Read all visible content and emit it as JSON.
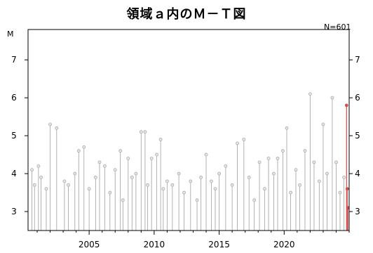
{
  "chart_data": {
    "type": "stem",
    "title": "領域ａ内のＭ－Ｔ図",
    "count_label": "N=601",
    "ylabel": "M",
    "xlim": [
      2000.3,
      2025.0
    ],
    "ylim": [
      2.5,
      7.8
    ],
    "xticks": [
      2005,
      2010,
      2015,
      2020
    ],
    "yticks": [
      3,
      4,
      5,
      6,
      7
    ],
    "baseline": 2.5,
    "series": [
      {
        "color": "#a9a9a9",
        "x": [
          2000.6,
          2000.8,
          2001.1,
          2001.3,
          2001.7,
          2002.0,
          2002.5,
          2003.1,
          2003.4,
          2003.9,
          2004.2,
          2004.6,
          2005.0,
          2005.5,
          2005.8,
          2006.2,
          2006.6,
          2007.0,
          2007.4,
          2007.6,
          2008.0,
          2008.3,
          2008.6,
          2009.0,
          2009.3,
          2009.5,
          2009.8,
          2010.2,
          2010.5,
          2010.7,
          2011.0,
          2011.4,
          2011.9,
          2012.3,
          2012.8,
          2013.3,
          2013.6,
          2014.0,
          2014.4,
          2014.7,
          2015.0,
          2015.5,
          2016.0,
          2016.4,
          2016.9,
          2017.3,
          2017.7,
          2018.1,
          2018.5,
          2018.8,
          2019.2,
          2019.5,
          2019.9,
          2020.2,
          2020.5,
          2020.9,
          2021.2,
          2021.6,
          2022.0,
          2022.3,
          2022.7,
          2023.0,
          2023.3,
          2023.7,
          2024.0,
          2024.3,
          2024.6
        ],
        "y": [
          4.1,
          3.7,
          4.2,
          3.9,
          3.6,
          5.3,
          5.2,
          3.8,
          3.7,
          4.0,
          4.6,
          4.7,
          3.6,
          3.9,
          4.3,
          4.2,
          3.5,
          4.1,
          4.6,
          3.3,
          4.4,
          3.9,
          4.0,
          5.1,
          5.1,
          3.7,
          4.4,
          4.5,
          4.9,
          3.6,
          3.8,
          3.7,
          4.0,
          3.5,
          3.8,
          3.3,
          3.9,
          4.5,
          3.8,
          3.6,
          4.0,
          4.2,
          3.7,
          4.8,
          4.9,
          3.9,
          3.3,
          4.3,
          3.6,
          4.4,
          4.0,
          4.4,
          4.6,
          5.2,
          3.5,
          4.1,
          3.7,
          4.6,
          6.1,
          4.3,
          3.8,
          5.3,
          4.0,
          6.0,
          4.3,
          3.5,
          3.9
        ]
      },
      {
        "color": "#d94b4b",
        "x": [
          2024.8,
          2024.85,
          2024.9
        ],
        "y": [
          5.8,
          3.6,
          3.1
        ]
      }
    ]
  }
}
